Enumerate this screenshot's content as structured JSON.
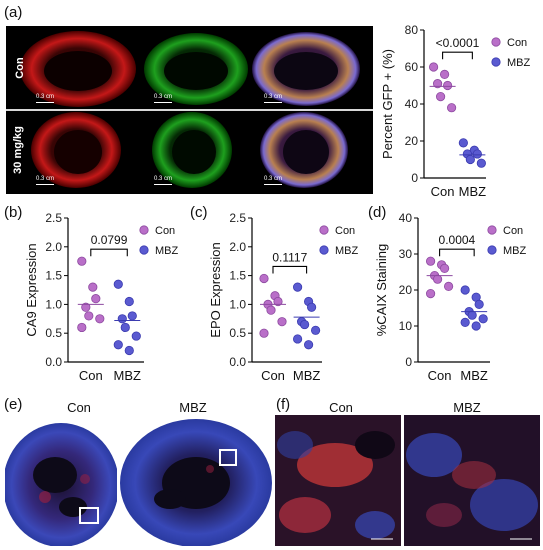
{
  "panels": {
    "a": "(a)",
    "b": "(b)",
    "c": "(c)",
    "d": "(d)",
    "e": "(e)",
    "f": "(f)"
  },
  "microscopy": {
    "row_labels": [
      "Con",
      "30 mg/kg"
    ],
    "scale_label": "0.3 cm"
  },
  "ihc": {
    "e_labels": [
      "Con",
      "MBZ"
    ],
    "f_labels": [
      "Con",
      "MBZ"
    ]
  },
  "colors": {
    "con": "#b96fc8",
    "mbz": "#5a5ad0",
    "con_edge": "#8d4aa0",
    "mbz_edge": "#3b3bb0"
  },
  "chart_data": [
    {
      "id": "a",
      "type": "scatter",
      "categories": [
        "Con",
        "MBZ"
      ],
      "ylabel": "Percent GFP + (%)",
      "ylim": [
        0,
        80
      ],
      "yticks": [
        "0",
        "20",
        "40",
        "60",
        "80"
      ],
      "legend": [
        "Con",
        "MBZ"
      ],
      "legend_position": "top-right",
      "bracket_label": "<0.0001",
      "series": [
        {
          "name": "Con",
          "values": [
            60,
            56,
            50,
            51,
            44,
            38
          ],
          "mean": 49.5
        },
        {
          "name": "MBZ",
          "values": [
            19,
            15,
            13,
            13,
            10,
            8
          ],
          "mean": 12.5
        }
      ]
    },
    {
      "id": "b",
      "type": "scatter",
      "categories": [
        "Con",
        "MBZ"
      ],
      "ylabel": "CA9 Expression",
      "ylim": [
        0,
        2.5
      ],
      "yticks": [
        "0.0",
        "0.5",
        "1.0",
        "1.5",
        "2.0",
        "2.5"
      ],
      "legend": [
        "Con",
        "MBZ"
      ],
      "legend_position": "top-right",
      "bracket_label": "0.0799",
      "series": [
        {
          "name": "Con",
          "values": [
            1.75,
            1.3,
            1.1,
            0.95,
            0.8,
            0.75,
            0.6
          ],
          "mean": 1.0
        },
        {
          "name": "MBZ",
          "values": [
            1.35,
            1.05,
            0.8,
            0.75,
            0.6,
            0.45,
            0.3,
            0.2
          ],
          "mean": 0.72
        }
      ]
    },
    {
      "id": "c",
      "type": "scatter",
      "categories": [
        "Con",
        "MBZ"
      ],
      "ylabel": "EPO Expression",
      "ylim": [
        0,
        2.5
      ],
      "yticks": [
        "0.0",
        "0.5",
        "1.0",
        "1.5",
        "2.0",
        "2.5"
      ],
      "legend": [
        "Con",
        "MBZ"
      ],
      "legend_position": "top-right",
      "bracket_label": "0.1117",
      "series": [
        {
          "name": "Con",
          "values": [
            1.45,
            1.15,
            1.05,
            1.0,
            0.9,
            0.7,
            0.5
          ],
          "mean": 1.0
        },
        {
          "name": "MBZ",
          "values": [
            1.3,
            1.05,
            0.95,
            0.7,
            0.65,
            0.55,
            0.4,
            0.3
          ],
          "mean": 0.78
        }
      ]
    },
    {
      "id": "d",
      "type": "scatter",
      "categories": [
        "Con",
        "MBZ"
      ],
      "ylabel": "%CAIX Staining",
      "ylim": [
        0,
        40
      ],
      "yticks": [
        "0",
        "10",
        "20",
        "30",
        "40"
      ],
      "legend": [
        "Con",
        "MBZ"
      ],
      "legend_position": "top-right",
      "bracket_label": "0.0004",
      "series": [
        {
          "name": "Con",
          "values": [
            28,
            27,
            26,
            24,
            23,
            21,
            19
          ],
          "mean": 24.0
        },
        {
          "name": "MBZ",
          "values": [
            20,
            18,
            16,
            14,
            13,
            12,
            11,
            10
          ],
          "mean": 14.0
        }
      ]
    }
  ]
}
